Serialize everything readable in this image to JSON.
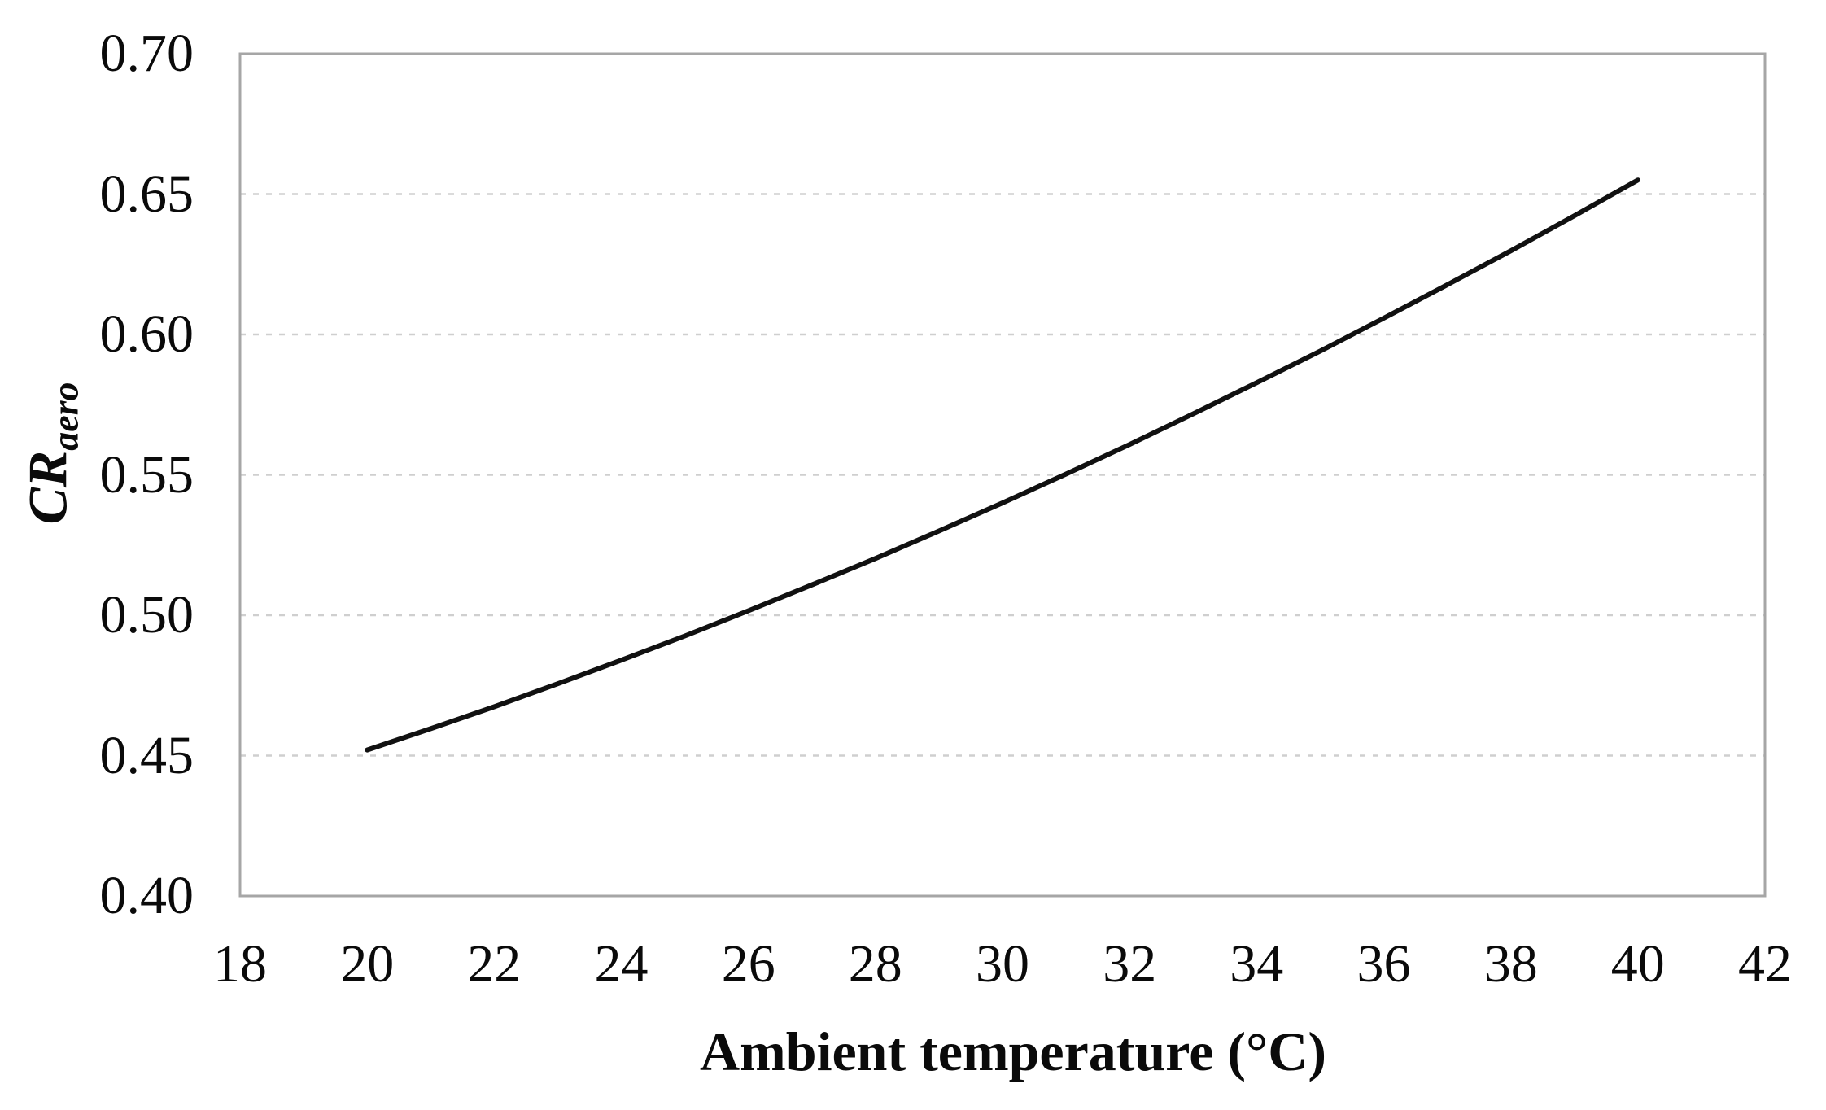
{
  "figure": {
    "background": "#ffffff",
    "plot": {
      "border_color": "#a6a6a6",
      "gridline_color": "#cfcfcf",
      "grid_values": [
        0.45,
        0.5,
        0.55,
        0.6,
        0.65
      ]
    }
  },
  "chart_data": {
    "type": "line",
    "title": "",
    "xlabel": "Ambient temperature (°C)",
    "ylabel": "CRaero",
    "ylabel_base": "CR",
    "ylabel_subscript": "aero",
    "xlim": [
      18,
      42
    ],
    "ylim": [
      0.4,
      0.7
    ],
    "x_ticks": [
      "18",
      "20",
      "22",
      "24",
      "26",
      "28",
      "30",
      "32",
      "34",
      "36",
      "38",
      "40",
      "42"
    ],
    "y_ticks": [
      "0.40",
      "0.45",
      "0.50",
      "0.55",
      "0.60",
      "0.65",
      "0.70"
    ],
    "grid": "horizontal dashed gridlines at 0.05 intervals",
    "legend": "none",
    "series": [
      {
        "name": "CRaero",
        "color": "#111111",
        "stroke_width": 6,
        "x": [
          20,
          21,
          22,
          23,
          24,
          25,
          26,
          27,
          28,
          29,
          30,
          31,
          32,
          33,
          34,
          35,
          36,
          37,
          38,
          39,
          40
        ],
        "y": [
          0.452,
          0.4596,
          0.4674,
          0.4756,
          0.484,
          0.4926,
          0.5016,
          0.5108,
          0.5202,
          0.53,
          0.54,
          0.5503,
          0.5608,
          0.5717,
          0.5828,
          0.5941,
          0.6058,
          0.6177,
          0.6298,
          0.6423,
          0.655
        ]
      }
    ]
  }
}
